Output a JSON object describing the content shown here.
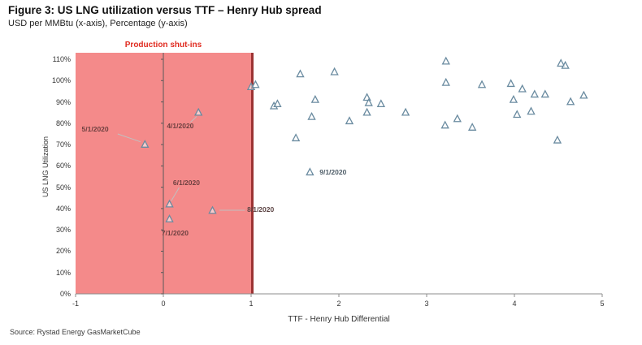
{
  "header": {
    "title": "Figure 3: US LNG utilization versus TTF – Henry Hub spread",
    "subtitle": "USD per MMBtu (x-axis), Percentage (y-axis)"
  },
  "source": "Source: Rystad Energy GasMarketCube",
  "chart_data": {
    "type": "scatter",
    "title": "US LNG utilization versus TTF - Henry Hub spread",
    "xlabel": "TTF - Henry Hub Differential",
    "ylabel": "US LNG Utilization",
    "xlim": [
      -1,
      5
    ],
    "ylim_pct": [
      0,
      113
    ],
    "x_ticks": [
      -1,
      0,
      1,
      2,
      3,
      4,
      5
    ],
    "y_ticks_pct": [
      0,
      10,
      20,
      30,
      40,
      50,
      60,
      70,
      80,
      90,
      100,
      110
    ],
    "grid": false,
    "marker": {
      "shape": "triangle-open",
      "stroke": "#6a8ba0"
    },
    "shaded_region": {
      "label": "Production shut-ins",
      "x_from": -1,
      "x_to": 1,
      "fill": "#f48a8a",
      "edge": "#9c3333",
      "label_color": "#e02b20"
    },
    "axis_color": "#8c8c8c",
    "yaxis_line_color": "#595959",
    "connector_color": "#c0c0c0",
    "points": [
      [
        -0.21,
        70
      ],
      [
        0.4,
        85
      ],
      [
        0.07,
        42
      ],
      [
        0.07,
        35
      ],
      [
        0.56,
        39
      ],
      [
        1.0,
        97
      ],
      [
        1.05,
        98
      ],
      [
        1.26,
        88
      ],
      [
        1.3,
        89
      ],
      [
        1.51,
        73
      ],
      [
        1.56,
        103
      ],
      [
        1.67,
        57
      ],
      [
        1.69,
        83
      ],
      [
        1.73,
        91
      ],
      [
        1.95,
        104
      ],
      [
        2.12,
        81
      ],
      [
        2.32,
        92
      ],
      [
        2.34,
        89.5
      ],
      [
        2.32,
        85
      ],
      [
        2.48,
        89
      ],
      [
        2.76,
        85
      ],
      [
        3.22,
        109
      ],
      [
        3.22,
        99
      ],
      [
        3.21,
        79
      ],
      [
        3.35,
        82
      ],
      [
        3.52,
        78
      ],
      [
        3.63,
        98
      ],
      [
        3.96,
        98.5
      ],
      [
        3.99,
        91
      ],
      [
        4.03,
        84
      ],
      [
        4.09,
        96
      ],
      [
        4.19,
        85.5
      ],
      [
        4.23,
        93.5
      ],
      [
        4.35,
        93.5
      ],
      [
        4.49,
        72
      ],
      [
        4.53,
        108
      ],
      [
        4.58,
        107
      ],
      [
        4.64,
        90
      ],
      [
        4.79,
        93
      ]
    ],
    "annotations": [
      {
        "text": "5/1/2020",
        "x": -0.93,
        "y": 77,
        "color": "#6e4040",
        "line": [
          -0.52,
          75.0,
          -0.26,
          71.3
        ]
      },
      {
        "text": "4/1/2020",
        "x": 0.04,
        "y": 78.5,
        "color": "#6e4040",
        "line": [
          0.31,
          80.5,
          0.38,
          83.2
        ]
      },
      {
        "text": "6/1/2020",
        "x": 0.11,
        "y": 52,
        "color": "#6e4040",
        "line": [
          0.18,
          49.8,
          0.09,
          43.6
        ]
      },
      {
        "text": "7/1/2020",
        "x": -0.02,
        "y": 28.5,
        "color": "#6e4040",
        "line": null
      },
      {
        "text": "8/1/2020",
        "x": 0.955,
        "y": 39.3,
        "color": "#5c4444",
        "line": [
          0.64,
          39.2,
          0.93,
          39.2
        ]
      },
      {
        "text": "9/1/2020",
        "x": 1.78,
        "y": 56.8,
        "color": "#4e5d68",
        "line": null
      }
    ]
  }
}
